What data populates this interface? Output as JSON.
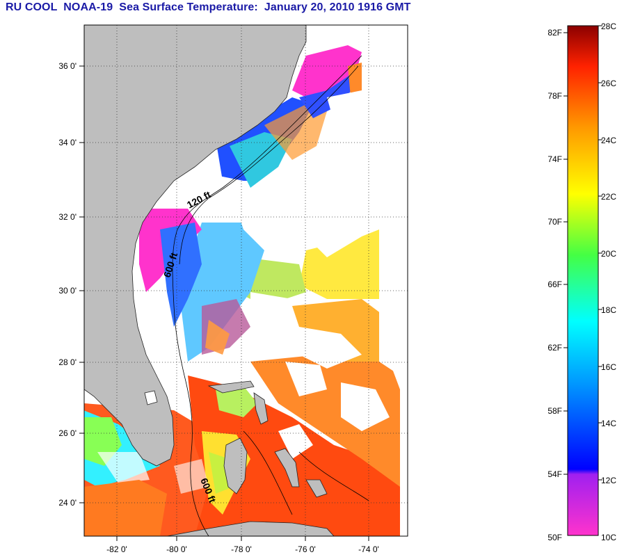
{
  "title": "RU COOL  NOAA-19  Sea Surface Temperature:  January 20, 2010 1916 GMT",
  "map": {
    "lat_ticks": [
      "36 0'",
      "34 0'",
      "32 0'",
      "30 0'",
      "28 0'",
      "26 0'",
      "24 0'"
    ],
    "lon_ticks": [
      "-82 0'",
      "-80 0'",
      "-78 0'",
      "-76 0'",
      "-74 0'"
    ],
    "contour_labels": [
      "120 ft",
      "600 ft",
      "600 ft"
    ],
    "land_color": "#bebebe",
    "cloud_color": "#ffffff"
  },
  "colorbar": {
    "fahrenheit_labels": [
      "82F",
      "78F",
      "74F",
      "70F",
      "66F",
      "62F",
      "58F",
      "54F",
      "50F"
    ],
    "celsius_labels": [
      "28C",
      "26C",
      "24C",
      "22C",
      "20C",
      "18C",
      "16C",
      "14C",
      "12C",
      "10C"
    ],
    "range_c": [
      10,
      28
    ],
    "range_f": [
      50,
      82.4
    ]
  }
}
